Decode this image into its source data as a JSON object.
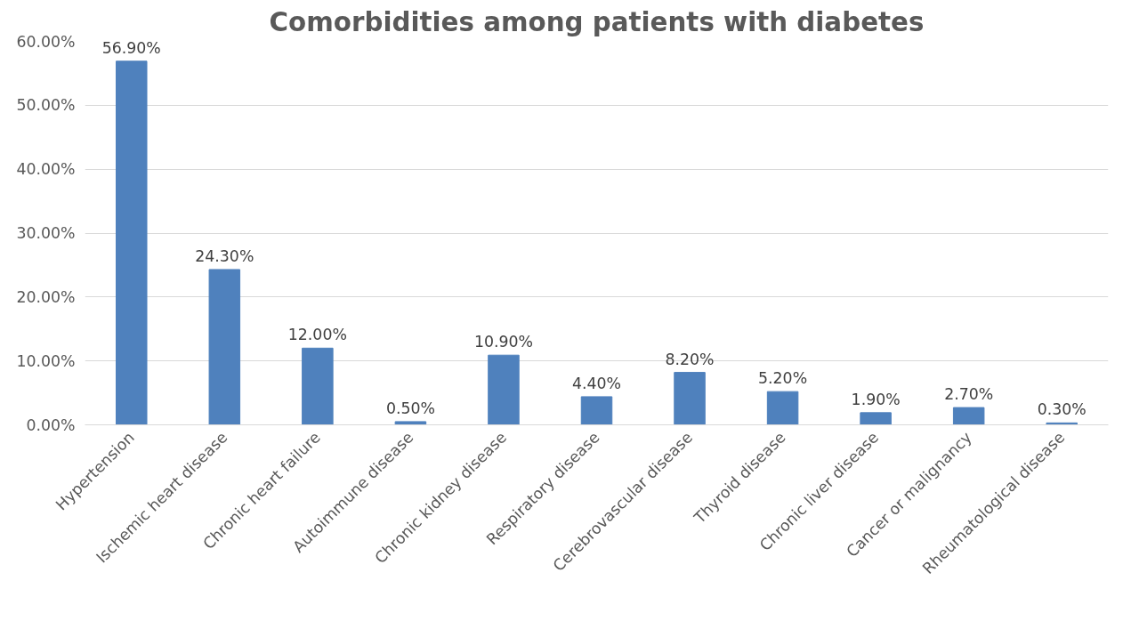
{
  "chart_data": {
    "type": "bar",
    "title": "Comorbidities among patients with diabetes",
    "categories": [
      "Hypertension",
      "Ischemic heart disease",
      "Chronic heart failure",
      "Autoimmune disease",
      "Chronic kidney disease",
      "Respiratory disease",
      "Cerebrovascular disease",
      "Thyroid disease",
      "Chronic liver disease",
      "Cancer or malignancy",
      "Rheumatological disease"
    ],
    "values": [
      56.9,
      24.3,
      12.0,
      0.5,
      10.9,
      4.4,
      8.2,
      5.2,
      1.9,
      2.7,
      0.3
    ],
    "value_labels": [
      "56.90%",
      "24.30%",
      "12.00%",
      "0.50%",
      "10.90%",
      "4.40%",
      "8.20%",
      "5.20%",
      "1.90%",
      "2.70%",
      "0.30%"
    ],
    "color": "#4f81bd",
    "ylim": [
      0,
      60
    ],
    "yticks": [
      {
        "value": 0,
        "label": "0.00%"
      },
      {
        "value": 10,
        "label": "10.00%"
      },
      {
        "value": 20,
        "label": "20.00%"
      },
      {
        "value": 30,
        "label": "30.00%"
      },
      {
        "value": 40,
        "label": "40.00%"
      },
      {
        "value": 50,
        "label": "50.00%"
      },
      {
        "value": 60,
        "label": "60.00%"
      }
    ],
    "grid": "y"
  }
}
